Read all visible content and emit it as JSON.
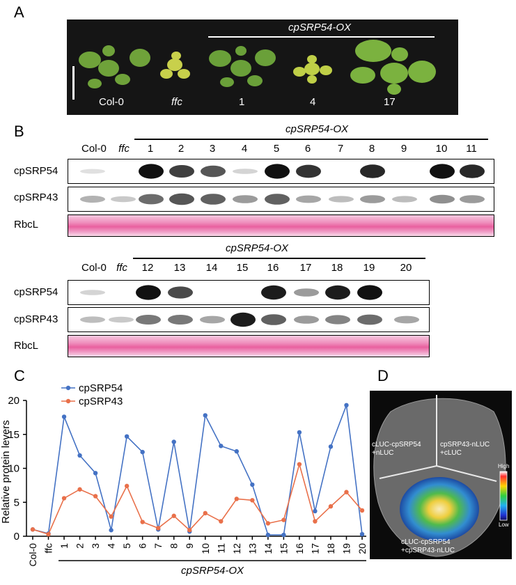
{
  "panel_a": {
    "letter": "A",
    "group_label": "cpSRP54-OX",
    "labels": [
      "Col-0",
      "ffc",
      "1",
      "4",
      "17"
    ]
  },
  "panel_b": {
    "letter": "B",
    "group_label": "cpSRP54-OX",
    "row_labels": [
      "cpSRP54",
      "cpSRP43",
      "RbcL"
    ],
    "blot1_lanes": [
      "Col-0",
      "ffc",
      "1",
      "2",
      "3",
      "4",
      "5",
      "6",
      "7",
      "8",
      "9",
      "10",
      "11"
    ],
    "blot2_lanes": [
      "Col-0",
      "ffc",
      "12",
      "13",
      "14",
      "15",
      "16",
      "17",
      "18",
      "19",
      "20"
    ],
    "blot1_sp54_intensity": [
      0.05,
      0,
      0.95,
      0.75,
      0.65,
      0.1,
      0.95,
      0.8,
      0,
      0.85,
      0,
      0.95,
      0.85
    ],
    "blot1_sp43_intensity": [
      0.25,
      0.15,
      0.55,
      0.65,
      0.6,
      0.35,
      0.6,
      0.3,
      0.2,
      0.35,
      0.2,
      0.4,
      0.35
    ],
    "blot2_sp54_intensity": [
      0.1,
      0,
      0.95,
      0.7,
      0,
      0,
      0.9,
      0.35,
      0.9,
      0.95,
      0
    ],
    "blot2_sp43_intensity": [
      0.2,
      0.15,
      0.5,
      0.5,
      0.3,
      0.9,
      0.6,
      0.35,
      0.45,
      0.55,
      0.3
    ]
  },
  "panel_c": {
    "letter": "C",
    "group_label": "cpSRP54-OX",
    "chart_data": {
      "type": "line",
      "ylabel": "Relative protein levers",
      "ylim": [
        0,
        20
      ],
      "yticks": [
        0,
        5,
        10,
        15,
        20
      ],
      "categories": [
        "Col-0",
        "ffc",
        "1",
        "2",
        "3",
        "4",
        "5",
        "6",
        "7",
        "8",
        "9",
        "10",
        "11",
        "12",
        "13",
        "14",
        "15",
        "16",
        "17",
        "18",
        "19",
        "20"
      ],
      "series": [
        {
          "name": "cpSRP54",
          "color": "#4472c4",
          "values": [
            1.0,
            0.4,
            17.6,
            11.9,
            9.3,
            0.9,
            14.7,
            12.4,
            1.0,
            13.9,
            0.7,
            17.8,
            13.3,
            12.5,
            7.6,
            0.2,
            0.2,
            15.3,
            3.7,
            13.2,
            19.3,
            0.3
          ]
        },
        {
          "name": "cpSRP43",
          "color": "#e9704a",
          "values": [
            1.0,
            0.3,
            5.6,
            6.9,
            5.9,
            2.9,
            7.4,
            2.1,
            1.2,
            3.0,
            0.9,
            3.4,
            2.2,
            5.5,
            5.3,
            1.9,
            2.4,
            10.6,
            2.2,
            4.4,
            6.5,
            3.8
          ]
        }
      ]
    }
  },
  "panel_d": {
    "letter": "D",
    "quadrant_left": [
      "cLUC-cpSRP54",
      "+nLUC"
    ],
    "quadrant_right": [
      "cpSRP43-nLUC",
      "+cLUC"
    ],
    "quadrant_bottom": [
      "cLUC-cpSRP54",
      "+cpSRP43-nLUC"
    ],
    "scale_high": "High",
    "scale_low": "Low"
  }
}
